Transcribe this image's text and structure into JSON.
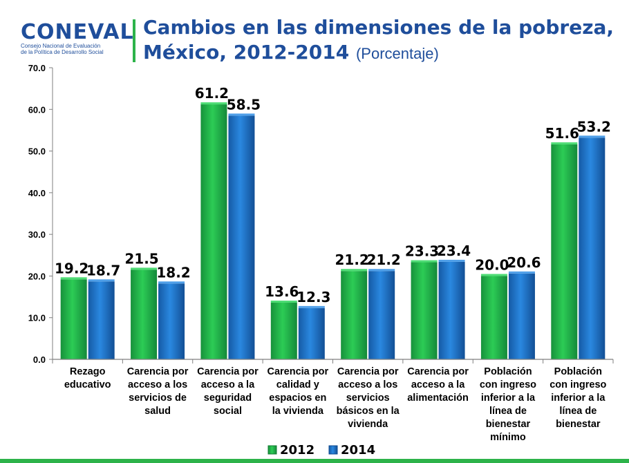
{
  "header": {
    "logo_text": "CONEVAL",
    "logo_subtitle_1": "Consejo Nacional de Evaluación",
    "logo_subtitle_2": "de la Política de Desarrollo Social",
    "title_line1": "Cambios en las dimensiones de la pobreza,",
    "title_line2": "México, 2012-2014",
    "title_units": "(Porcentaje)"
  },
  "colors": {
    "green": "#22b14c",
    "blue": "#1e73c8",
    "title": "#1f4e9b",
    "accent": "#2db34a"
  },
  "chart_data": {
    "type": "bar",
    "categories": [
      [
        "Rezago",
        "educativo"
      ],
      [
        "Carencia por",
        "acceso a los",
        "servicios de",
        "salud"
      ],
      [
        "Carencia por",
        "acceso a la",
        "seguridad",
        "social"
      ],
      [
        "Carencia por",
        "calidad y",
        "espacios en",
        "la vivienda"
      ],
      [
        "Carencia por",
        "acceso a los",
        "servicios",
        "básicos en la",
        "vivienda"
      ],
      [
        "Carencia por",
        "acceso a la",
        "alimentación"
      ],
      [
        "Población",
        "con ingreso",
        "inferior a la",
        "línea de",
        "bienestar",
        "mínimo"
      ],
      [
        "Población",
        "con ingreso",
        "inferior a la",
        "línea de",
        "bienestar"
      ]
    ],
    "series": [
      {
        "name": "2012",
        "values": [
          19.2,
          21.5,
          61.2,
          13.6,
          21.2,
          23.3,
          20.0,
          51.6
        ]
      },
      {
        "name": "2014",
        "values": [
          18.7,
          18.2,
          58.5,
          12.3,
          21.2,
          23.4,
          20.6,
          53.2
        ]
      }
    ],
    "ylim": [
      0,
      70
    ],
    "yticks": [
      "0.0",
      "10.0",
      "20.0",
      "30.0",
      "40.0",
      "50.0",
      "60.0",
      "70.0"
    ],
    "legend_position": "bottom"
  }
}
